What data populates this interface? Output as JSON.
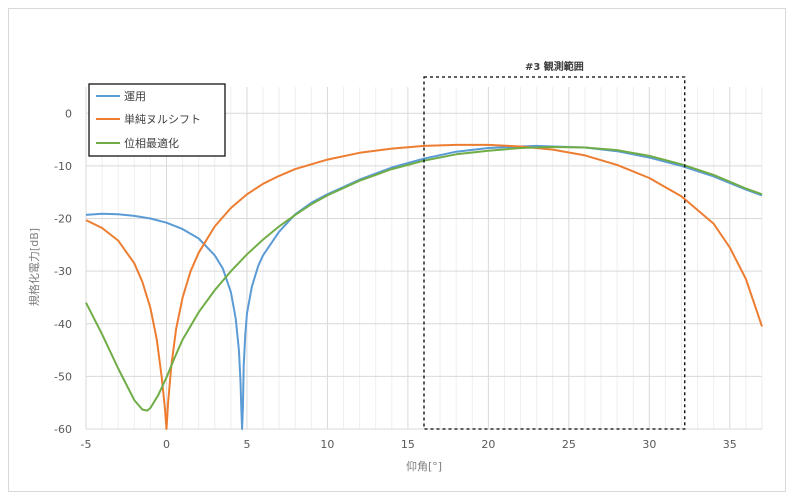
{
  "chart_data": {
    "type": "line",
    "xlabel": "仰角[°]",
    "ylabel": "規格化電力[dB]",
    "xlim": [
      -5,
      37
    ],
    "ylim": [
      -60,
      5
    ],
    "xticks": [
      -5,
      0,
      5,
      10,
      15,
      20,
      25,
      30,
      35
    ],
    "yticks": [
      0,
      -10,
      -20,
      -30,
      -40,
      -50,
      -60
    ],
    "grid": true,
    "legend_position": "top-left",
    "annotation": {
      "label": "#3 観測範囲",
      "x_range": [
        16,
        32.2
      ],
      "y_range": [
        -60,
        5
      ],
      "style": "dashed-box"
    },
    "series": [
      {
        "name": "運用",
        "color": "#5b9bd5",
        "x": [
          -5,
          -4,
          -3,
          -2,
          -1,
          0,
          1,
          2,
          3,
          3.5,
          4,
          4.3,
          4.5,
          4.6,
          4.65,
          4.7,
          4.75,
          4.8,
          4.9,
          5,
          5.3,
          5.7,
          6,
          7,
          8,
          9,
          10,
          12,
          14,
          16,
          18,
          20,
          22,
          23,
          24,
          26,
          28,
          30,
          32,
          34,
          36,
          37
        ],
        "y": [
          -19.3,
          -19.1,
          -19.2,
          -19.5,
          -20,
          -20.8,
          -22,
          -23.8,
          -27,
          -29.5,
          -34,
          -39,
          -45,
          -51,
          -56,
          -60,
          -56,
          -48,
          -42,
          -38,
          -33,
          -29,
          -27,
          -22.5,
          -19.2,
          -17,
          -15.4,
          -12.6,
          -10.3,
          -8.6,
          -7.3,
          -6.6,
          -6.3,
          -6.2,
          -6.3,
          -6.5,
          -7.2,
          -8.4,
          -10,
          -12,
          -14.5,
          -15.6
        ]
      },
      {
        "name": "単純ヌルシフト",
        "color": "#ed7d31",
        "x": [
          -5,
          -4,
          -3,
          -2,
          -1.5,
          -1,
          -0.6,
          -0.3,
          -0.1,
          0,
          0.1,
          0.3,
          0.6,
          1,
          1.5,
          2,
          3,
          4,
          5,
          6,
          7,
          8,
          10,
          12,
          14,
          16,
          18,
          20,
          22,
          24,
          26,
          28,
          30,
          32,
          34,
          35,
          36,
          37
        ],
        "y": [
          -20.3,
          -21.8,
          -24.2,
          -28.5,
          -32,
          -37,
          -43,
          -50,
          -56,
          -60,
          -55,
          -48,
          -41,
          -35,
          -30,
          -26.5,
          -21.5,
          -18,
          -15.4,
          -13.4,
          -11.9,
          -10.6,
          -8.8,
          -7.5,
          -6.7,
          -6.2,
          -6,
          -6,
          -6.3,
          -6.9,
          -8,
          -9.8,
          -12.3,
          -15.8,
          -21,
          -25.5,
          -31.5,
          -40.5
        ]
      },
      {
        "name": "位相最適化",
        "color": "#70ad47",
        "x": [
          -5,
          -4,
          -3,
          -2,
          -1.5,
          -1.2,
          -1,
          -0.5,
          0,
          0.5,
          1,
          2,
          3,
          4,
          5,
          6,
          7,
          8,
          9,
          10,
          12,
          14,
          16,
          18,
          20,
          22,
          24,
          26,
          28,
          30,
          32,
          34,
          36,
          37
        ],
        "y": [
          -36,
          -42,
          -48.5,
          -54.5,
          -56.3,
          -56.5,
          -56,
          -53.5,
          -50.2,
          -46.5,
          -43,
          -37.8,
          -33.6,
          -30,
          -26.8,
          -24,
          -21.5,
          -19.3,
          -17.3,
          -15.6,
          -12.8,
          -10.6,
          -9,
          -7.8,
          -7.1,
          -6.6,
          -6.4,
          -6.5,
          -7,
          -8.1,
          -9.7,
          -11.7,
          -14.3,
          -15.4
        ]
      }
    ]
  }
}
